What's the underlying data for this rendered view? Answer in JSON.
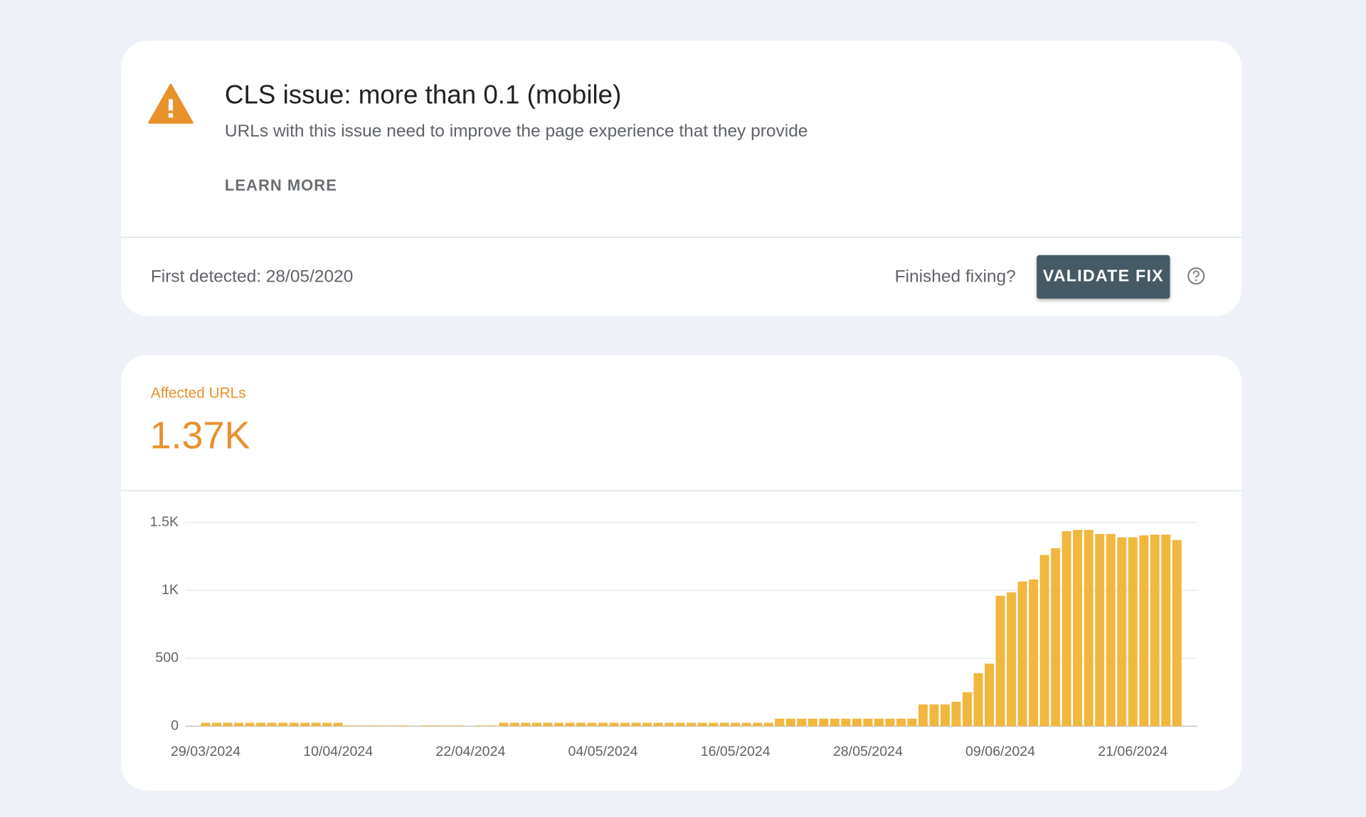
{
  "issue": {
    "title": "CLS issue: more than 0.1 (mobile)",
    "description": "URLs with this issue need to improve the page experience that they provide",
    "learn_more": "LEARN MORE",
    "first_detected": "First detected: 28/05/2020",
    "fix_prompt": "Finished fixing?",
    "validate_button": "VALIDATE FIX"
  },
  "metric": {
    "label": "Affected URLs",
    "value": "1.37K"
  },
  "chart_data": {
    "type": "bar",
    "color": "#f1b73f",
    "grid": true,
    "categories": [
      "29/03/2024",
      null,
      null,
      null,
      null,
      null,
      null,
      null,
      null,
      null,
      null,
      null,
      "10/04/2024",
      null,
      null,
      null,
      null,
      null,
      null,
      null,
      null,
      null,
      null,
      null,
      "22/04/2024",
      null,
      null,
      null,
      null,
      null,
      null,
      null,
      null,
      null,
      null,
      null,
      "04/05/2024",
      null,
      null,
      null,
      null,
      null,
      null,
      null,
      null,
      null,
      null,
      null,
      "16/05/2024",
      null,
      null,
      null,
      null,
      null,
      null,
      null,
      null,
      null,
      null,
      null,
      "28/05/2024",
      null,
      null,
      null,
      null,
      null,
      null,
      null,
      null,
      null,
      null,
      null,
      "09/06/2024",
      null,
      null,
      null,
      null,
      null,
      null,
      null,
      null,
      null,
      null,
      null,
      "21/06/2024",
      null,
      null,
      null,
      null
    ],
    "values": [
      25,
      25,
      25,
      25,
      25,
      25,
      25,
      25,
      25,
      25,
      25,
      25,
      25,
      5,
      5,
      5,
      5,
      5,
      5,
      0,
      5,
      5,
      5,
      5,
      0,
      5,
      5,
      25,
      25,
      25,
      25,
      25,
      25,
      25,
      25,
      25,
      25,
      25,
      25,
      25,
      25,
      25,
      25,
      25,
      25,
      25,
      25,
      25,
      25,
      25,
      25,
      25,
      55,
      55,
      55,
      55,
      55,
      55,
      55,
      55,
      55,
      55,
      55,
      55,
      55,
      160,
      160,
      160,
      180,
      250,
      390,
      460,
      960,
      985,
      1065,
      1080,
      1260,
      1310,
      1435,
      1445,
      1445,
      1415,
      1415,
      1390,
      1390,
      1405,
      1410,
      1410,
      1370
    ],
    "ylim": [
      0,
      1500
    ],
    "yticks": [
      0,
      500,
      {
        "value": 1000,
        "label": "1K"
      },
      {
        "value": 1500,
        "label": "1.5K"
      }
    ]
  }
}
